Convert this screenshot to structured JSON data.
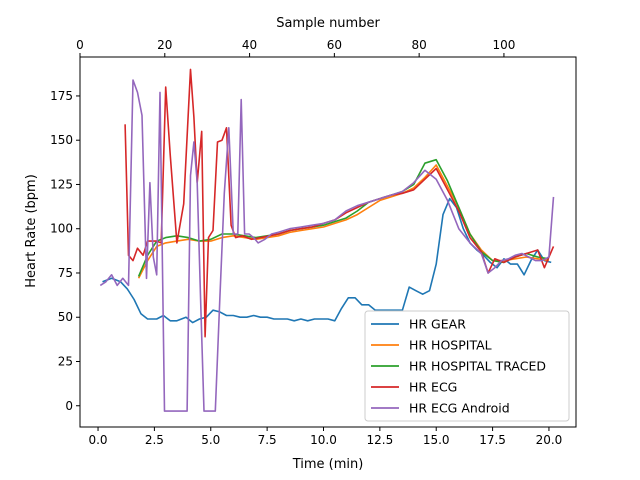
{
  "chart_data": {
    "type": "line",
    "xlabel": "Time (min)",
    "ylabel": "Heart Rate (bpm)",
    "top_xlabel": "Sample number",
    "xlim": [
      -0.8,
      21.2
    ],
    "ylim": [
      -12,
      197
    ],
    "top_xlim": [
      0,
      117
    ],
    "x_ticks": [
      0.0,
      2.5,
      5.0,
      7.5,
      10.0,
      12.5,
      15.0,
      17.5,
      20.0
    ],
    "x_tick_labels": [
      "0.0",
      "2.5",
      "5.0",
      "7.5",
      "10.0",
      "12.5",
      "15.0",
      "17.5",
      "20.0"
    ],
    "y_ticks": [
      0,
      25,
      50,
      75,
      100,
      125,
      150,
      175
    ],
    "y_tick_labels": [
      "0",
      "25",
      "50",
      "75",
      "100",
      "125",
      "150",
      "175"
    ],
    "top_ticks": [
      0,
      20,
      40,
      60,
      80,
      100
    ],
    "top_tick_labels": [
      "0",
      "20",
      "40",
      "60",
      "80",
      "100"
    ],
    "grid": false,
    "legend_position": "lower-right",
    "series": [
      {
        "name": "HR GEAR",
        "color": "#1f77b4",
        "x": [
          0.2,
          0.6,
          1.0,
          1.3,
          1.6,
          1.9,
          2.2,
          2.6,
          2.9,
          3.2,
          3.5,
          3.9,
          4.2,
          4.5,
          4.8,
          5.1,
          5.4,
          5.7,
          6.0,
          6.3,
          6.6,
          6.9,
          7.2,
          7.5,
          7.8,
          8.1,
          8.4,
          8.7,
          9.0,
          9.3,
          9.6,
          9.9,
          10.2,
          10.5,
          10.8,
          11.1,
          11.4,
          11.7,
          12.0,
          12.3,
          12.6,
          12.9,
          13.2,
          13.5,
          13.8,
          14.1,
          14.4,
          14.7,
          15.0,
          15.3,
          15.6,
          15.9,
          16.2,
          16.5,
          16.8,
          17.1,
          17.4,
          17.7,
          18.0,
          18.3,
          18.6,
          18.9,
          19.2,
          19.5,
          19.8,
          20.1
        ],
        "y": [
          70,
          72,
          70,
          66,
          60,
          52,
          49,
          49,
          51,
          48,
          48,
          50,
          47,
          49,
          50,
          54,
          53,
          51,
          51,
          50,
          50,
          51,
          50,
          50,
          49,
          49,
          49,
          48,
          49,
          48,
          49,
          49,
          49,
          48,
          55,
          61,
          61,
          57,
          57,
          54,
          54,
          54,
          54,
          54,
          67,
          65,
          63,
          65,
          80,
          108,
          117,
          112,
          100,
          92,
          88,
          85,
          81,
          78,
          83,
          80,
          80,
          74,
          82,
          88,
          82,
          81
        ]
      },
      {
        "name": "HR HOSPITAL",
        "color": "#ff7f0e",
        "x": [
          1.8,
          2.2,
          2.6,
          3.0,
          3.5,
          4.0,
          4.5,
          5.0,
          5.5,
          6.0,
          6.5,
          7.0,
          7.5,
          8.0,
          8.5,
          9.0,
          9.5,
          10.0,
          10.5,
          11.0,
          11.5,
          12.0,
          12.5,
          13.0,
          13.5,
          14.0,
          14.5,
          15.0,
          15.5,
          16.0,
          16.5,
          17.0,
          17.5,
          18.0,
          18.5,
          19.0,
          19.5,
          20.0
        ],
        "y": [
          72,
          82,
          90,
          92,
          93,
          94,
          93,
          93,
          95,
          96,
          95,
          94,
          95,
          96,
          98,
          99,
          100,
          101,
          103,
          105,
          108,
          112,
          116,
          118,
          120,
          123,
          129,
          136,
          124,
          112,
          97,
          88,
          82,
          82,
          83,
          84,
          83,
          82
        ]
      },
      {
        "name": "HR HOSPITAL TRACED",
        "color": "#2ca02c",
        "x": [
          1.8,
          2.2,
          2.6,
          3.0,
          3.5,
          4.0,
          4.5,
          5.0,
          5.5,
          6.0,
          6.5,
          7.0,
          7.5,
          8.0,
          8.5,
          9.0,
          9.5,
          10.0,
          10.5,
          11.0,
          11.5,
          12.0,
          12.5,
          13.0,
          13.5,
          14.0,
          14.5,
          15.0,
          15.5,
          16.0,
          16.5,
          17.0,
          17.5,
          18.0,
          18.5,
          19.0,
          19.5,
          20.0
        ],
        "y": [
          73,
          85,
          93,
          95,
          96,
          95,
          93,
          94,
          97,
          97,
          96,
          95,
          96,
          97,
          99,
          100,
          101,
          102,
          104,
          106,
          110,
          115,
          117,
          119,
          121,
          125,
          137,
          139,
          127,
          112,
          97,
          87,
          82,
          81,
          84,
          86,
          84,
          83
        ]
      },
      {
        "name": "HR ECG",
        "color": "#d62728",
        "x": [
          1.2,
          1.35,
          1.55,
          1.75,
          2.0,
          2.2,
          2.4,
          2.6,
          2.8,
          3.0,
          3.2,
          3.5,
          3.8,
          4.1,
          4.25,
          4.4,
          4.6,
          4.75,
          4.9,
          5.1,
          5.3,
          5.5,
          5.7,
          5.9,
          6.1,
          6.4,
          6.8,
          7.2,
          7.6,
          8.0,
          8.5,
          9.0,
          9.5,
          10.0,
          10.5,
          11.0,
          11.5,
          12.0,
          12.5,
          13.0,
          13.5,
          14.0,
          14.5,
          15.0,
          15.5,
          16.0,
          16.5,
          17.0,
          17.3,
          17.6,
          18.0,
          18.5,
          19.0,
          19.5,
          19.8,
          20.2
        ],
        "y": [
          159,
          85,
          82,
          89,
          85,
          93,
          93,
          93,
          92,
          180,
          142,
          92,
          114,
          190,
          163,
          126,
          155,
          39,
          95,
          99,
          149,
          150,
          157,
          102,
          95,
          96,
          94,
          95,
          96,
          97,
          99,
          100,
          101,
          103,
          105,
          109,
          112,
          115,
          117,
          119,
          120,
          122,
          128,
          134,
          122,
          110,
          95,
          87,
          75,
          83,
          81,
          84,
          86,
          88,
          78,
          90
        ]
      },
      {
        "name": "HR ECG Android",
        "color": "#9467bd",
        "x": [
          0.1,
          0.35,
          0.6,
          0.85,
          1.1,
          1.35,
          1.55,
          1.75,
          1.95,
          2.15,
          2.3,
          2.45,
          2.6,
          2.75,
          2.95,
          3.15,
          3.35,
          3.55,
          3.75,
          3.95,
          4.1,
          4.25,
          4.4,
          4.55,
          4.7,
          4.85,
          5.05,
          5.2,
          5.4,
          5.6,
          5.8,
          6.0,
          6.2,
          6.35,
          6.5,
          6.7,
          6.9,
          7.1,
          7.4,
          7.7,
          8.0,
          8.5,
          9.0,
          9.5,
          10.0,
          10.5,
          11.0,
          11.5,
          12.0,
          12.5,
          13.0,
          13.5,
          14.0,
          14.5,
          15.0,
          15.5,
          16.0,
          16.5,
          17.0,
          17.3,
          17.6,
          17.9,
          18.2,
          18.5,
          18.8,
          19.1,
          19.4,
          19.7,
          20.0,
          20.2
        ],
        "y": [
          68,
          70,
          74,
          68,
          72,
          68,
          184,
          177,
          164,
          72,
          126,
          84,
          74,
          177,
          -3,
          -3,
          -3,
          -3,
          -3,
          -3,
          130,
          149,
          126,
          60,
          -3,
          -3,
          -3,
          -3,
          60,
          120,
          157,
          97,
          97,
          173,
          97,
          97,
          95,
          92,
          94,
          97,
          98,
          100,
          101,
          102,
          103,
          105,
          110,
          113,
          115,
          117,
          119,
          121,
          126,
          133,
          128,
          116,
          100,
          92,
          86,
          75,
          78,
          82,
          83,
          85,
          86,
          84,
          82,
          82,
          84,
          118
        ]
      }
    ]
  }
}
